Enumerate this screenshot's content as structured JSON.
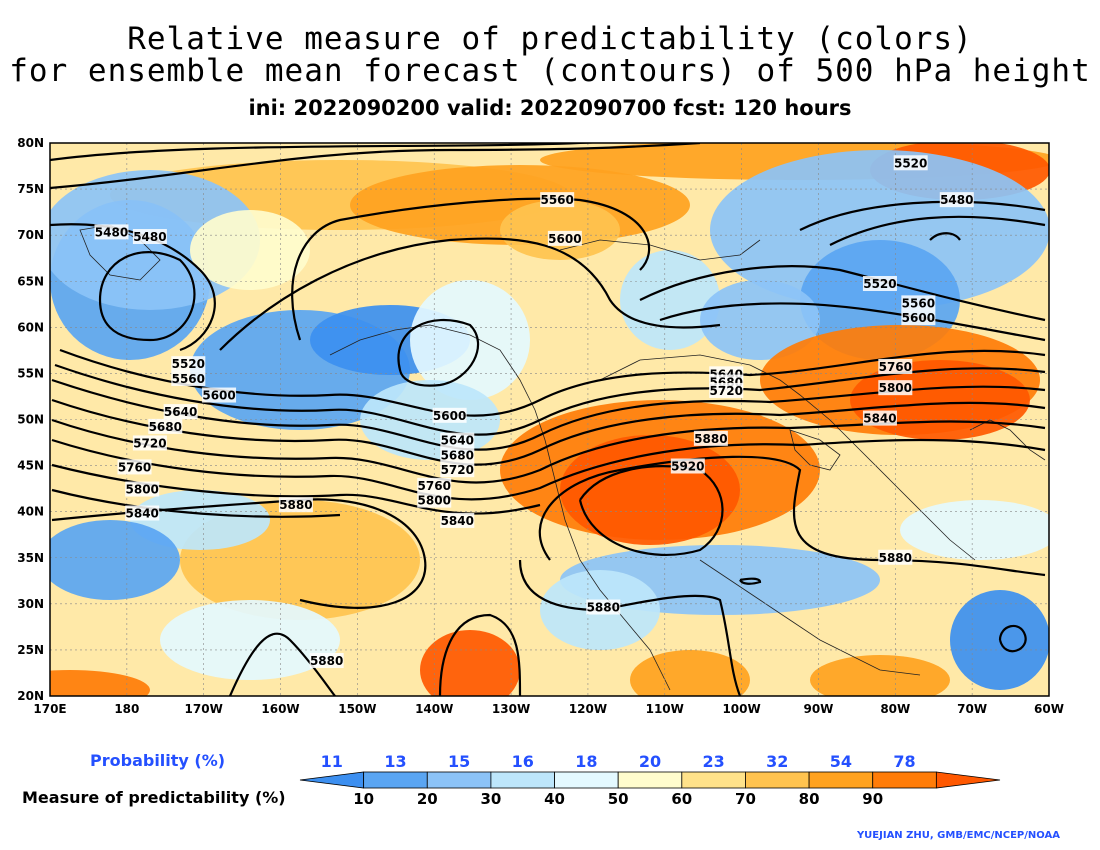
{
  "title": {
    "line1": "Relative measure of predictability (colors)",
    "line2": "for ensemble mean forecast (contours) of 500 hPa height",
    "line3": "ini: 2022090200 valid: 2022090700 fcst: 120 hours"
  },
  "map": {
    "lat_labels": [
      "80N",
      "75N",
      "70N",
      "65N",
      "60N",
      "55N",
      "50N",
      "45N",
      "40N",
      "35N",
      "30N",
      "25N",
      "20N"
    ],
    "lon_labels": [
      "170E",
      "180",
      "170W",
      "160W",
      "150W",
      "140W",
      "130W",
      "120W",
      "110W",
      "100W",
      "90W",
      "80W",
      "70W",
      "60W"
    ],
    "lat_values": [
      80,
      75,
      70,
      65,
      60,
      55,
      50,
      45,
      40,
      35,
      30,
      25,
      20
    ],
    "lon_values": [
      170,
      180,
      -170,
      -160,
      -150,
      -140,
      -130,
      -120,
      -110,
      -100,
      -90,
      -80,
      -70,
      -60
    ]
  },
  "contours": [
    {
      "label": "5480",
      "lon": -177,
      "lat": 69.8
    },
    {
      "label": "5480",
      "lon": -182,
      "lat": 70.3
    },
    {
      "label": "5520",
      "lon": -78,
      "lat": 77.8
    },
    {
      "label": "5480",
      "lon": -72,
      "lat": 73.8
    },
    {
      "label": "5560",
      "lon": -124,
      "lat": 73.8
    },
    {
      "label": "5600",
      "lon": -123,
      "lat": 69.6
    },
    {
      "label": "5520",
      "lon": -82,
      "lat": 64.7
    },
    {
      "label": "5560",
      "lon": -77,
      "lat": 62.6
    },
    {
      "label": "5600",
      "lon": -77,
      "lat": 61.0
    },
    {
      "label": "5640",
      "lon": -102,
      "lat": 54.9
    },
    {
      "label": "5680",
      "lon": -102,
      "lat": 54.0
    },
    {
      "label": "5720",
      "lon": -102,
      "lat": 53.1
    },
    {
      "label": "5760",
      "lon": -80,
      "lat": 55.7
    },
    {
      "label": "5800",
      "lon": -80,
      "lat": 53.4
    },
    {
      "label": "5840",
      "lon": -82,
      "lat": 50.1
    },
    {
      "label": "5880",
      "lon": -104,
      "lat": 47.9
    },
    {
      "label": "5920",
      "lon": -107,
      "lat": 44.9
    },
    {
      "label": "5520",
      "lon": -172,
      "lat": 56.0
    },
    {
      "label": "5560",
      "lon": -172,
      "lat": 54.4
    },
    {
      "label": "5600",
      "lon": -168,
      "lat": 52.6
    },
    {
      "label": "5640",
      "lon": -173,
      "lat": 50.8
    },
    {
      "label": "5680",
      "lon": -175,
      "lat": 49.2
    },
    {
      "label": "5720",
      "lon": -177,
      "lat": 47.4
    },
    {
      "label": "5760",
      "lon": -179,
      "lat": 44.8
    },
    {
      "label": "5800",
      "lon": -178,
      "lat": 42.4
    },
    {
      "label": "5840",
      "lon": -178,
      "lat": 39.8
    },
    {
      "label": "5600",
      "lon": -138,
      "lat": 50.4
    },
    {
      "label": "5640",
      "lon": -137,
      "lat": 47.7
    },
    {
      "label": "5680",
      "lon": -137,
      "lat": 46.1
    },
    {
      "label": "5720",
      "lon": -137,
      "lat": 44.5
    },
    {
      "label": "5760",
      "lon": -140,
      "lat": 42.8
    },
    {
      "label": "5800",
      "lon": -140,
      "lat": 41.2
    },
    {
      "label": "5840",
      "lon": -137,
      "lat": 39.0
    },
    {
      "label": "5880",
      "lon": -158,
      "lat": 40.7
    },
    {
      "label": "5880",
      "lon": -118,
      "lat": 29.6
    },
    {
      "label": "5880",
      "lon": -80,
      "lat": 35.0
    },
    {
      "label": "5880",
      "lon": -154,
      "lat": 23.8
    }
  ],
  "colorbar": {
    "probability_label": "Probability (%)",
    "measure_label": "Measure of predictability (%)",
    "probabilities": [
      "11",
      "13",
      "15",
      "16",
      "18",
      "20",
      "23",
      "32",
      "54",
      "78"
    ],
    "measures": [
      "10",
      "20",
      "30",
      "40",
      "50",
      "60",
      "70",
      "80",
      "90"
    ],
    "colors": [
      "#3c8ff0",
      "#5aa5f2",
      "#8cc3f7",
      "#bde6fb",
      "#e4f9ff",
      "#fffccd",
      "#ffe28a",
      "#ffc34f",
      "#ffa21f",
      "#ff7c08",
      "#ff5800"
    ]
  },
  "credit": "YUEJIAN ZHU, GMB/EMC/NCEP/NOAA"
}
